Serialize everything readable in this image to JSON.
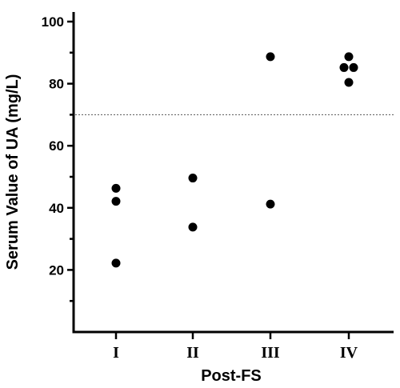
{
  "chart_data": {
    "type": "scatter",
    "xlabel": "Post-FS",
    "ylabel": "Serum Value of UA (mg/L)",
    "categories": [
      "I",
      "II",
      "III",
      "IV"
    ],
    "ylim": [
      0,
      100
    ],
    "yticks": [
      20,
      40,
      60,
      80,
      100
    ],
    "reference_line": 70,
    "points": [
      {
        "category": "I",
        "y": 46.3
      },
      {
        "category": "I",
        "y": 42.1
      },
      {
        "category": "I",
        "y": 22.2
      },
      {
        "category": "II",
        "y": 49.6
      },
      {
        "category": "II",
        "y": 33.8
      },
      {
        "category": "III",
        "y": 88.7
      },
      {
        "category": "III",
        "y": 41.2
      },
      {
        "category": "IV",
        "y": 88.7
      },
      {
        "category": "IV",
        "y": 85.2
      },
      {
        "category": "IV",
        "y": 85.2
      },
      {
        "category": "IV",
        "y": 80.4
      }
    ],
    "grid": false,
    "colors": {
      "points": "#000000",
      "axis": "#000000",
      "reference_line": "#555555"
    }
  }
}
